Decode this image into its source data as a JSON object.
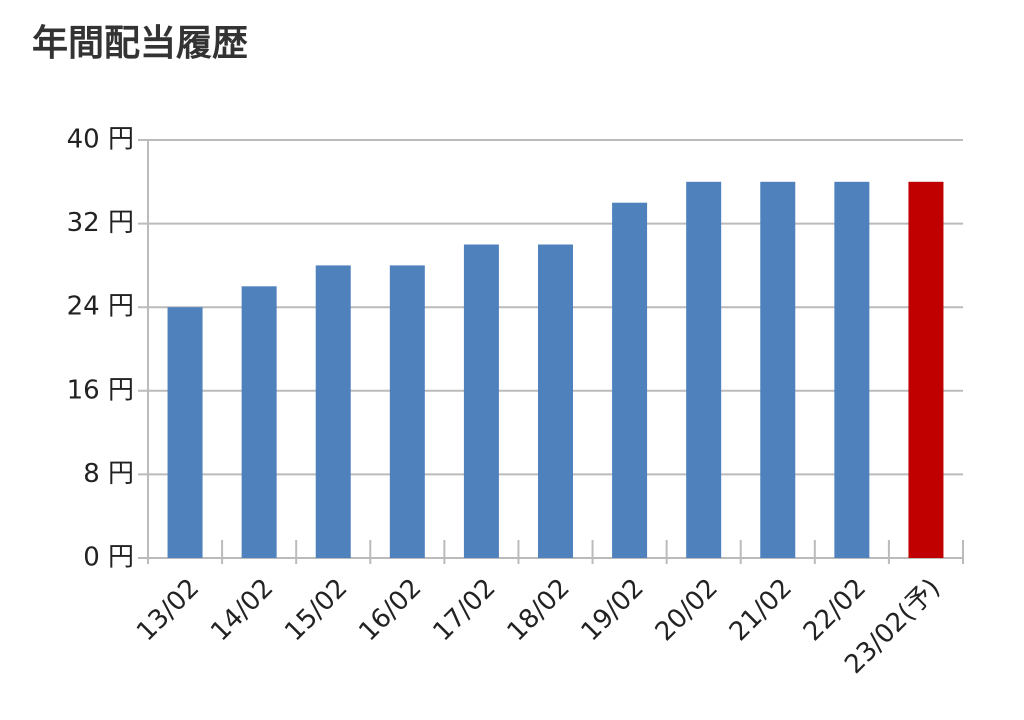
{
  "chart_data": {
    "type": "bar",
    "title": "年間配当履歴",
    "categories": [
      "13/02",
      "14/02",
      "15/02",
      "16/02",
      "17/02",
      "18/02",
      "19/02",
      "20/02",
      "21/02",
      "22/02",
      "23/02(予)"
    ],
    "values": [
      24,
      26,
      28,
      28,
      30,
      30,
      34,
      36,
      36,
      36,
      36
    ],
    "colors": [
      "#4f81bd",
      "#4f81bd",
      "#4f81bd",
      "#4f81bd",
      "#4f81bd",
      "#4f81bd",
      "#4f81bd",
      "#4f81bd",
      "#4f81bd",
      "#4f81bd",
      "#c00000"
    ],
    "ylim": [
      0,
      40
    ],
    "yticks": [
      {
        "value": 0,
        "label": "0 円"
      },
      {
        "value": 8,
        "label": "8 円"
      },
      {
        "value": 16,
        "label": "16 円"
      },
      {
        "value": 24,
        "label": "24 円"
      },
      {
        "value": 32,
        "label": "32 円"
      },
      {
        "value": 40,
        "label": "40 円"
      }
    ],
    "grid": true
  }
}
